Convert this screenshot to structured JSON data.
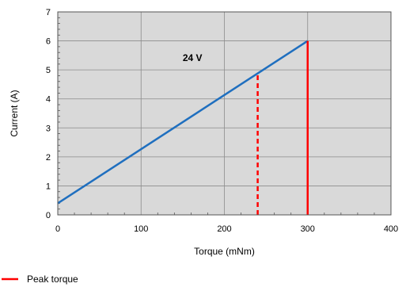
{
  "chart_data": {
    "type": "line",
    "xlabel": "Torque (mNm)",
    "ylabel": "Current (A)",
    "xlim": [
      0,
      400
    ],
    "ylim": [
      0,
      7
    ],
    "xticks": [
      0,
      100,
      200,
      300,
      400
    ],
    "yticks": [
      0,
      1,
      2,
      3,
      4,
      5,
      6,
      7
    ],
    "grid": true,
    "colors": {
      "plot_background": "#d9d9d9",
      "current_line": "#1f6fbf",
      "peak_torque": "#ff0000"
    },
    "series": [
      {
        "values": [
          [
            0,
            0.4
          ],
          [
            300,
            6.0
          ]
        ]
      }
    ],
    "markers": [
      {
        "x": 300,
        "y_from": 0,
        "y_to": 6.0,
        "style": "solid"
      },
      {
        "x": 240,
        "y_from": 0,
        "y_to": 4.88,
        "style": "dashed"
      }
    ],
    "annotation": {
      "text": "24 V",
      "x": 150,
      "y": 5.3
    },
    "legend": {
      "placement": "bottom-left",
      "entries": [
        {
          "label": "Peak torque",
          "color": "#ff0000"
        }
      ]
    }
  }
}
